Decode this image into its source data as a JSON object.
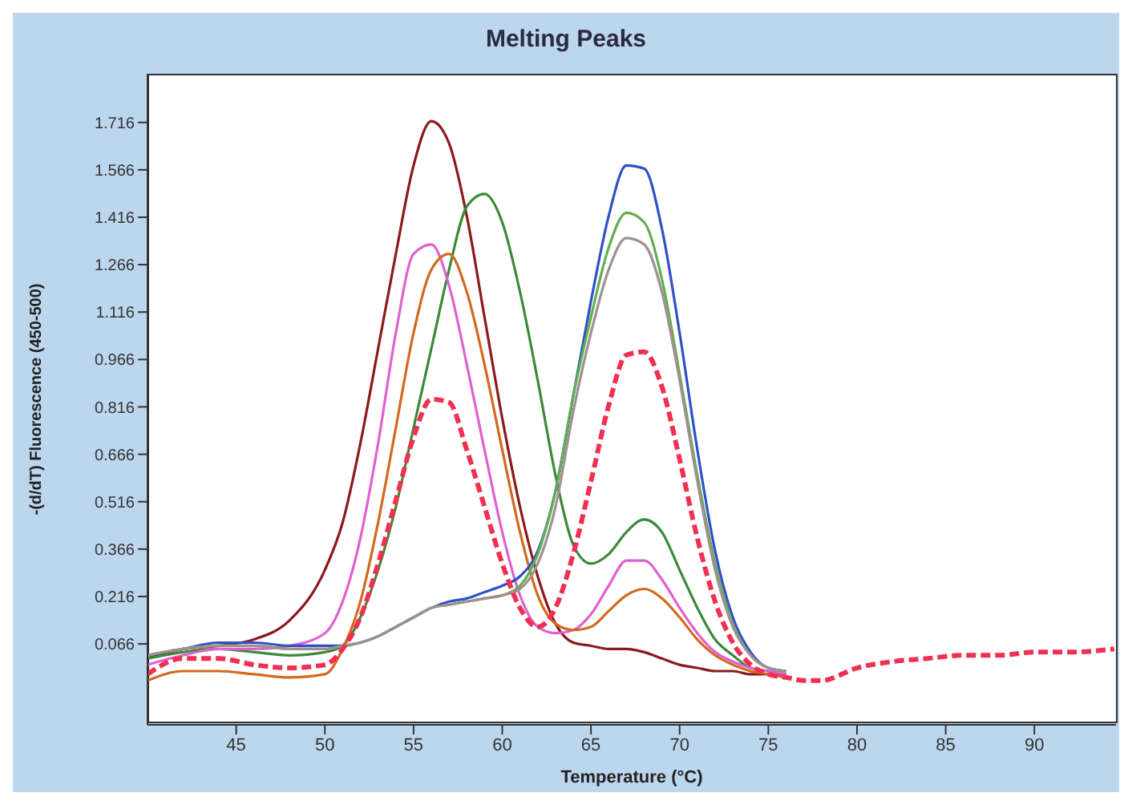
{
  "chart_data": {
    "type": "line",
    "title": "Melting Peaks",
    "xlabel": "Temperature (°C)",
    "ylabel": "-(d/dT) Fluorescence (450-500)",
    "x": [
      40,
      42,
      44,
      46,
      48,
      50,
      51,
      52,
      53,
      54,
      55,
      56,
      57,
      58,
      59,
      60,
      61,
      62,
      63,
      64,
      65,
      66,
      67,
      68,
      69,
      70,
      71,
      72,
      73,
      74,
      75,
      76,
      77,
      78,
      80,
      82,
      84,
      86,
      88,
      90,
      92,
      94.5
    ],
    "xlim": [
      40,
      94.6
    ],
    "xticks": [
      45,
      50,
      55,
      60,
      65,
      70,
      75,
      80,
      85,
      90
    ],
    "ylim": [
      -0.19,
      1.87
    ],
    "yticks": [
      0.066,
      0.216,
      0.366,
      0.516,
      0.666,
      0.816,
      0.966,
      1.116,
      1.266,
      1.416,
      1.566,
      1.716
    ],
    "grid": false,
    "legend": false,
    "marker": "none",
    "line_style": "solid",
    "series": [
      {
        "color": "#8b1a1a",
        "values": [
          0.02,
          0.05,
          0.06,
          0.08,
          0.14,
          0.3,
          0.45,
          0.7,
          1.0,
          1.3,
          1.58,
          1.72,
          1.65,
          1.42,
          1.1,
          0.78,
          0.5,
          0.28,
          0.13,
          0.07,
          0.06,
          0.05,
          0.05,
          0.04,
          0.02,
          0.0,
          -0.01,
          -0.02,
          -0.02,
          -0.03,
          -0.03,
          -0.03,
          null,
          null,
          null,
          null,
          null,
          null,
          null,
          null,
          null,
          null
        ]
      },
      {
        "color": "#3a8a3a",
        "values": [
          0.02,
          0.04,
          0.05,
          0.04,
          0.03,
          0.04,
          0.06,
          0.15,
          0.3,
          0.5,
          0.75,
          1.0,
          1.25,
          1.45,
          1.49,
          1.4,
          1.18,
          0.9,
          0.6,
          0.38,
          0.32,
          0.35,
          0.42,
          0.46,
          0.42,
          0.3,
          0.18,
          0.08,
          0.03,
          -0.01,
          -0.02,
          -0.03,
          null,
          null,
          null,
          null,
          null,
          null,
          null,
          null,
          null,
          null
        ]
      },
      {
        "color": "#e060d0",
        "values": [
          0.0,
          0.03,
          0.05,
          0.05,
          0.06,
          0.1,
          0.2,
          0.4,
          0.7,
          1.05,
          1.3,
          1.33,
          1.2,
          0.95,
          0.68,
          0.42,
          0.22,
          0.12,
          0.1,
          0.11,
          0.16,
          0.25,
          0.33,
          0.33,
          0.27,
          0.18,
          0.1,
          0.04,
          0.01,
          -0.01,
          -0.02,
          -0.03,
          null,
          null,
          null,
          null,
          null,
          null,
          null,
          null,
          null,
          null
        ]
      },
      {
        "color": "#d2691e",
        "values": [
          -0.05,
          -0.02,
          -0.02,
          -0.03,
          -0.04,
          -0.03,
          0.05,
          0.2,
          0.45,
          0.75,
          1.05,
          1.25,
          1.3,
          1.18,
          0.95,
          0.68,
          0.42,
          0.22,
          0.13,
          0.11,
          0.12,
          0.17,
          0.22,
          0.24,
          0.21,
          0.15,
          0.08,
          0.03,
          0.0,
          -0.02,
          -0.03,
          -0.04,
          null,
          null,
          null,
          null,
          null,
          null,
          null,
          null,
          null,
          null
        ]
      },
      {
        "color": "#3050c8",
        "values": [
          0.03,
          0.05,
          0.07,
          0.07,
          0.06,
          0.06,
          0.06,
          0.07,
          0.09,
          0.12,
          0.15,
          0.18,
          0.2,
          0.21,
          0.23,
          0.25,
          0.28,
          0.36,
          0.55,
          0.85,
          1.15,
          1.42,
          1.58,
          1.57,
          1.38,
          1.05,
          0.68,
          0.36,
          0.15,
          0.04,
          -0.01,
          -0.02,
          null,
          null,
          null,
          null,
          null,
          null,
          null,
          null,
          null,
          null
        ]
      },
      {
        "color": "#60b050",
        "values": [
          0.03,
          0.05,
          0.06,
          0.06,
          0.05,
          0.05,
          0.06,
          0.07,
          0.09,
          0.12,
          0.15,
          0.18,
          0.19,
          0.2,
          0.21,
          0.22,
          0.25,
          0.35,
          0.55,
          0.85,
          1.1,
          1.32,
          1.43,
          1.4,
          1.22,
          0.92,
          0.6,
          0.32,
          0.13,
          0.03,
          -0.01,
          -0.02,
          null,
          null,
          null,
          null,
          null,
          null,
          null,
          null,
          null,
          null
        ]
      },
      {
        "color": "#a09090",
        "values": [
          0.03,
          0.05,
          0.06,
          0.06,
          0.05,
          0.05,
          0.06,
          0.07,
          0.09,
          0.12,
          0.15,
          0.18,
          0.19,
          0.2,
          0.21,
          0.22,
          0.24,
          0.32,
          0.5,
          0.8,
          1.05,
          1.25,
          1.35,
          1.33,
          1.18,
          0.9,
          0.58,
          0.3,
          0.12,
          0.03,
          -0.01,
          -0.02,
          null,
          null,
          null,
          null,
          null,
          null,
          null,
          null,
          null,
          null
        ]
      },
      {
        "color": "#f03050",
        "line_style": "dashed",
        "values": [
          -0.03,
          0.02,
          0.02,
          0.0,
          -0.01,
          0.0,
          0.05,
          0.15,
          0.32,
          0.52,
          0.72,
          0.84,
          0.83,
          0.68,
          0.5,
          0.32,
          0.18,
          0.12,
          0.18,
          0.35,
          0.58,
          0.82,
          0.98,
          0.99,
          0.88,
          0.65,
          0.4,
          0.2,
          0.07,
          0.0,
          -0.03,
          -0.04,
          -0.05,
          -0.05,
          -0.01,
          0.01,
          0.02,
          0.03,
          0.03,
          0.04,
          0.04,
          0.05
        ]
      }
    ]
  }
}
